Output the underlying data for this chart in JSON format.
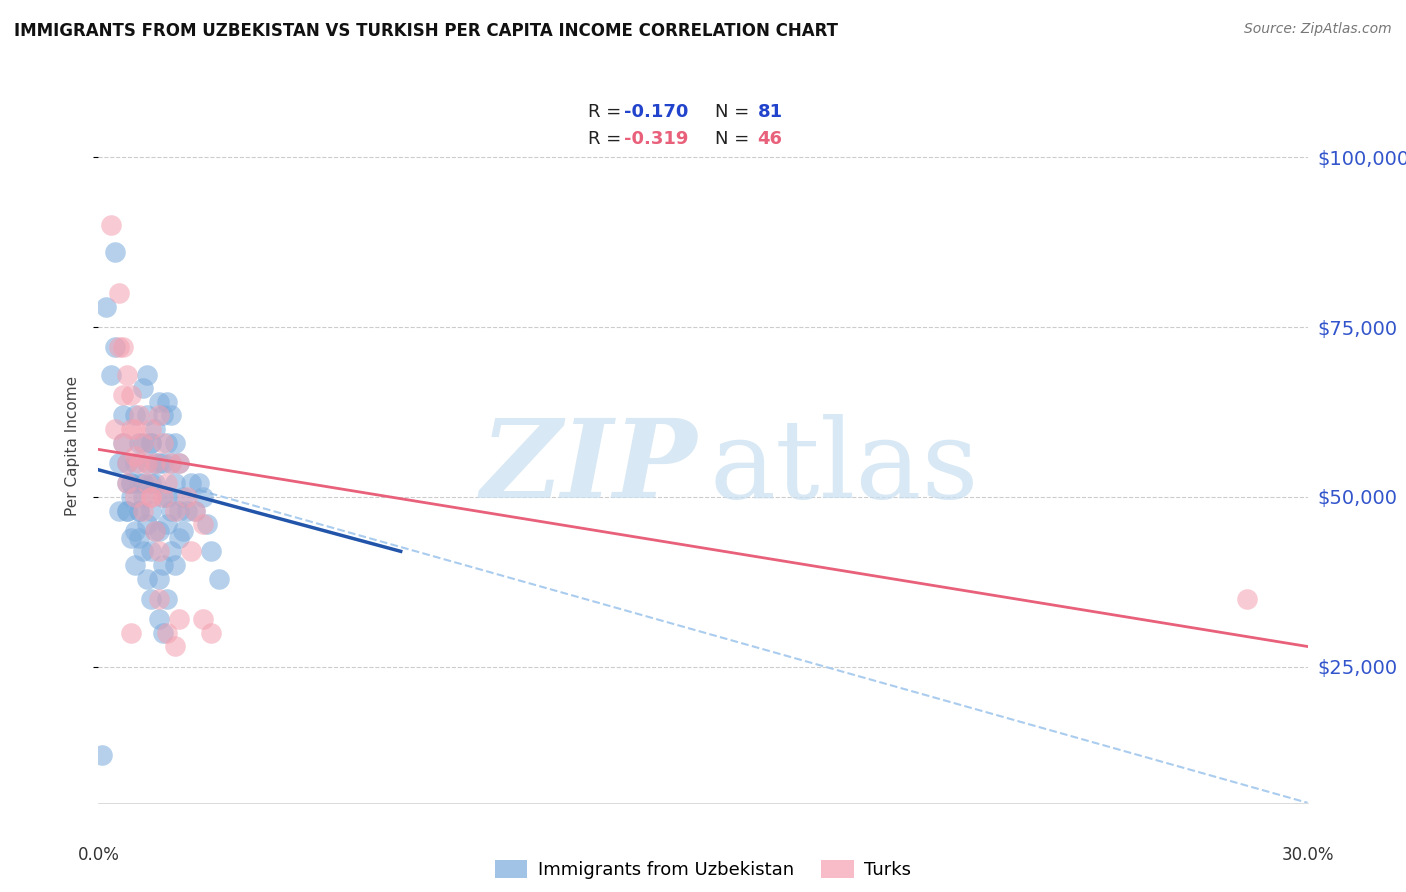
{
  "title": "IMMIGRANTS FROM UZBEKISTAN VS TURKISH PER CAPITA INCOME CORRELATION CHART",
  "source": "Source: ZipAtlas.com",
  "ylabel": "Per Capita Income",
  "ytick_labels": [
    "$25,000",
    "$50,000",
    "$75,000",
    "$100,000"
  ],
  "ytick_values": [
    25000,
    50000,
    75000,
    100000
  ],
  "blue_color": "#7AABDC",
  "pink_color": "#F4A0B0",
  "blue_line_color": "#2255AA",
  "pink_line_color": "#E8607A",
  "dashed_color": "#AACCEE",
  "xlim": [
    0.0,
    0.3
  ],
  "ylim": [
    5000,
    110000
  ],
  "blue_scatter_x": [
    0.001,
    0.004,
    0.007,
    0.008,
    0.009,
    0.01,
    0.01,
    0.011,
    0.011,
    0.012,
    0.012,
    0.013,
    0.013,
    0.013,
    0.014,
    0.014,
    0.015,
    0.015,
    0.016,
    0.016,
    0.017,
    0.017,
    0.017,
    0.018,
    0.018,
    0.018,
    0.019,
    0.019,
    0.02,
    0.02,
    0.021,
    0.021,
    0.022,
    0.023,
    0.024,
    0.025,
    0.026,
    0.027,
    0.028,
    0.03,
    0.007,
    0.008,
    0.009,
    0.01,
    0.011,
    0.012,
    0.013,
    0.014,
    0.015,
    0.016,
    0.017,
    0.018,
    0.019,
    0.02,
    0.003,
    0.005,
    0.006,
    0.007,
    0.008,
    0.009,
    0.01,
    0.011,
    0.012,
    0.013,
    0.014,
    0.015,
    0.016,
    0.017,
    0.004,
    0.005,
    0.006,
    0.007,
    0.008,
    0.009,
    0.01,
    0.011,
    0.012,
    0.013,
    0.015,
    0.016,
    0.002
  ],
  "blue_scatter_y": [
    12000,
    86000,
    55000,
    52000,
    62000,
    58000,
    52000,
    66000,
    58000,
    68000,
    62000,
    58000,
    52000,
    48000,
    60000,
    55000,
    64000,
    55000,
    62000,
    55000,
    64000,
    58000,
    50000,
    62000,
    55000,
    48000,
    58000,
    52000,
    55000,
    48000,
    50000,
    45000,
    48000,
    52000,
    48000,
    52000,
    50000,
    46000,
    42000,
    38000,
    48000,
    52000,
    55000,
    48000,
    50000,
    55000,
    58000,
    52000,
    45000,
    50000,
    46000,
    42000,
    40000,
    44000,
    68000,
    48000,
    58000,
    52000,
    50000,
    45000,
    48000,
    52000,
    46000,
    42000,
    45000,
    38000,
    40000,
    35000,
    72000,
    55000,
    62000,
    48000,
    44000,
    40000,
    44000,
    42000,
    38000,
    35000,
    32000,
    30000,
    78000
  ],
  "pink_scatter_x": [
    0.003,
    0.005,
    0.006,
    0.007,
    0.008,
    0.009,
    0.01,
    0.011,
    0.012,
    0.013,
    0.014,
    0.015,
    0.016,
    0.017,
    0.018,
    0.019,
    0.02,
    0.022,
    0.024,
    0.026,
    0.028,
    0.005,
    0.006,
    0.007,
    0.008,
    0.009,
    0.01,
    0.011,
    0.012,
    0.013,
    0.014,
    0.015,
    0.016,
    0.017,
    0.019,
    0.02,
    0.023,
    0.026,
    0.004,
    0.006,
    0.007,
    0.008,
    0.009,
    0.013,
    0.015,
    0.285
  ],
  "pink_scatter_y": [
    90000,
    80000,
    72000,
    68000,
    65000,
    60000,
    62000,
    58000,
    55000,
    60000,
    55000,
    62000,
    58000,
    52000,
    55000,
    48000,
    55000,
    50000,
    48000,
    46000,
    30000,
    72000,
    65000,
    55000,
    60000,
    50000,
    55000,
    48000,
    52000,
    50000,
    45000,
    42000,
    50000,
    30000,
    28000,
    32000,
    42000,
    32000,
    60000,
    58000,
    52000,
    30000,
    56000,
    50000,
    35000,
    35000
  ],
  "blue_trend_x": [
    0.0,
    0.075
  ],
  "blue_trend_y": [
    54000,
    42000
  ],
  "pink_trend_x": [
    0.0,
    0.3
  ],
  "pink_trend_y": [
    57000,
    28000
  ],
  "dashed_trend_x": [
    0.025,
    0.3
  ],
  "dashed_trend_y": [
    51000,
    5000
  ]
}
